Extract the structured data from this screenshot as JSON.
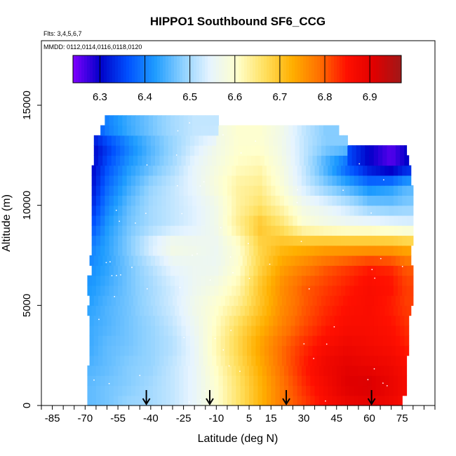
{
  "chart_data": {
    "type": "heatmap",
    "title": "HIPPO1 Southbound SF6_CCG",
    "flights_label": "Flts: 3,4,5,6,7",
    "mmdd_label": "MMDD: 0112,0114,0116,0118,0120",
    "xlabel": "Latitude (deg N)",
    "ylabel": "Altitude (m)",
    "xlim": [
      -90,
      90
    ],
    "ylim": [
      0,
      18000
    ],
    "x_ticks": [
      -85,
      -70,
      -55,
      -40,
      -25,
      -10,
      5,
      15,
      30,
      45,
      60,
      75
    ],
    "y_ticks": [
      0,
      5000,
      10000,
      15000
    ],
    "colorbar": {
      "range": [
        6.24,
        6.97
      ],
      "ticks": [
        "6.3",
        "6.4",
        "6.5",
        "6.6",
        "6.7",
        "6.8",
        "6.9"
      ],
      "tick_values": [
        6.3,
        6.4,
        6.5,
        6.6,
        6.7,
        6.8,
        6.9
      ],
      "colors": [
        "#8000ff",
        "#0000c8",
        "#0050ff",
        "#1e9cff",
        "#8cd0ff",
        "#e6f4ff",
        "#ffffcc",
        "#ffe060",
        "#ffb000",
        "#ff7000",
        "#ff1000",
        "#e00000",
        "#a01818"
      ]
    },
    "arrow_latitudes": [
      -42,
      -13,
      22,
      61
    ],
    "lat_grid": [
      -67,
      -60,
      -50,
      -40,
      -30,
      -20,
      -10,
      0,
      10,
      20,
      30,
      40,
      50,
      60,
      70,
      77
    ],
    "alt_grid": [
      250,
      1000,
      2000,
      3000,
      4000,
      5000,
      6000,
      7000,
      8000,
      9000,
      10000,
      11000,
      12000,
      13000,
      13800
    ],
    "values": [
      [
        6.46,
        6.47,
        6.49,
        6.5,
        6.52,
        6.55,
        6.6,
        6.66,
        6.72,
        6.78,
        6.82,
        6.86,
        6.89,
        6.9,
        6.88,
        6.86
      ],
      [
        6.46,
        6.47,
        6.48,
        6.5,
        6.52,
        6.55,
        6.6,
        6.66,
        6.72,
        6.78,
        6.83,
        6.87,
        6.91,
        6.92,
        6.89,
        6.87
      ],
      [
        6.45,
        6.46,
        6.48,
        6.49,
        6.52,
        6.55,
        6.61,
        6.67,
        6.73,
        6.79,
        6.84,
        6.88,
        6.9,
        6.89,
        6.88,
        6.86
      ],
      [
        6.44,
        6.46,
        6.47,
        6.49,
        6.51,
        6.55,
        6.62,
        6.68,
        6.74,
        6.79,
        6.83,
        6.86,
        6.88,
        6.87,
        6.86,
        6.84
      ],
      [
        6.44,
        6.45,
        6.47,
        6.49,
        6.52,
        6.56,
        6.61,
        6.67,
        6.72,
        6.77,
        6.81,
        6.84,
        6.86,
        6.86,
        6.85,
        6.83
      ],
      [
        6.43,
        6.45,
        6.47,
        6.5,
        6.53,
        6.57,
        6.6,
        6.64,
        6.7,
        6.76,
        6.8,
        6.83,
        6.85,
        6.86,
        6.84,
        6.82
      ],
      [
        6.42,
        6.44,
        6.47,
        6.5,
        6.53,
        6.56,
        6.58,
        6.62,
        6.7,
        6.76,
        6.8,
        6.82,
        6.84,
        6.86,
        6.85,
        6.82
      ],
      [
        6.41,
        6.43,
        6.47,
        6.51,
        6.55,
        6.56,
        6.56,
        6.6,
        6.68,
        6.74,
        6.77,
        6.8,
        6.82,
        6.84,
        6.83,
        6.8
      ],
      [
        6.4,
        6.43,
        6.48,
        6.54,
        6.58,
        6.57,
        6.56,
        6.6,
        6.68,
        6.71,
        6.72,
        6.73,
        6.73,
        6.73,
        6.73,
        6.72
      ],
      [
        6.36,
        6.42,
        6.47,
        6.5,
        6.52,
        6.54,
        6.57,
        6.64,
        6.7,
        6.66,
        6.6,
        6.58,
        6.57,
        6.57,
        6.56,
        6.55
      ],
      [
        6.33,
        6.4,
        6.46,
        6.5,
        6.52,
        6.54,
        6.57,
        6.63,
        6.66,
        6.62,
        6.57,
        6.55,
        6.52,
        6.48,
        6.47,
        6.48
      ],
      [
        6.31,
        6.38,
        6.44,
        6.49,
        6.52,
        6.55,
        6.59,
        6.63,
        6.64,
        6.59,
        6.53,
        6.48,
        6.44,
        6.4,
        6.42,
        6.45
      ],
      [
        6.3,
        6.36,
        6.42,
        6.46,
        6.5,
        6.55,
        6.58,
        6.61,
        6.62,
        6.58,
        6.52,
        6.44,
        6.36,
        6.3,
        6.26,
        6.3
      ],
      [
        6.3,
        6.34,
        6.4,
        6.45,
        6.49,
        6.53,
        6.57,
        6.6,
        6.6,
        6.57,
        6.52,
        6.48,
        null,
        null,
        null,
        null
      ],
      [
        6.35,
        6.4,
        6.44,
        6.47,
        6.5,
        6.52,
        null,
        null,
        null,
        null,
        null,
        null,
        null,
        null,
        null,
        null
      ]
    ],
    "lat_extent": [
      [
        -69,
        75
      ],
      [
        -69,
        77
      ],
      [
        -69,
        77
      ],
      [
        -69,
        77
      ],
      [
        -68,
        77
      ],
      [
        -68,
        78
      ],
      [
        -68,
        78
      ],
      [
        -68,
        78
      ],
      [
        -68,
        78
      ],
      [
        -69,
        79
      ],
      [
        -68,
        80
      ],
      [
        -69,
        80
      ],
      [
        -69,
        80
      ],
      [
        -67,
        80
      ],
      [
        -68,
        79
      ],
      [
        -67,
        79
      ],
      [
        -67,
        80
      ],
      [
        -67,
        80
      ],
      [
        -67,
        80
      ],
      [
        -67,
        80
      ],
      [
        -67,
        80
      ],
      [
        -67,
        80
      ],
      [
        -67,
        79
      ],
      [
        -67,
        79
      ],
      [
        -66,
        78
      ],
      [
        -66,
        77
      ],
      [
        -66,
        74
      ],
      [
        -63,
        46
      ],
      [
        -61,
        26
      ]
    ],
    "grid": false,
    "legend": "top colorbar"
  }
}
